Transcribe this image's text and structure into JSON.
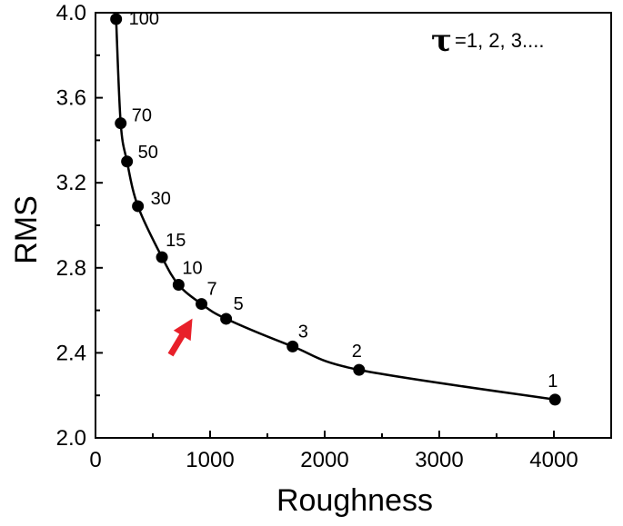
{
  "chart_data": {
    "type": "line",
    "xlabel": "Roughness",
    "ylabel": "RMS",
    "xlim": [
      0,
      4500
    ],
    "ylim": [
      2.0,
      4.0
    ],
    "xticks": [
      "0",
      "1000",
      "2000",
      "3000",
      "4000"
    ],
    "yticks": [
      "2.0",
      "2.4",
      "2.8",
      "3.2",
      "3.6",
      "4.0"
    ],
    "series": [
      {
        "x": [
          180,
          220,
          275,
          370,
          580,
          725,
          925,
          1140,
          1720,
          2300,
          4010
        ],
        "y": [
          3.97,
          3.48,
          3.3,
          3.09,
          2.85,
          2.72,
          2.63,
          2.56,
          2.43,
          2.32,
          2.18
        ],
        "labels": [
          "100",
          "70",
          "50",
          "30",
          "15",
          "10",
          "7",
          "5",
          "3",
          "2",
          "1"
        ]
      }
    ],
    "annotations": {
      "tau_symbol": "τ",
      "tau_text": "=1, 2, 3....",
      "arrow_target_label": "7",
      "arrow_color": "#e8202a"
    },
    "grid": false,
    "line_color": "#000000",
    "marker_color": "#000000"
  }
}
